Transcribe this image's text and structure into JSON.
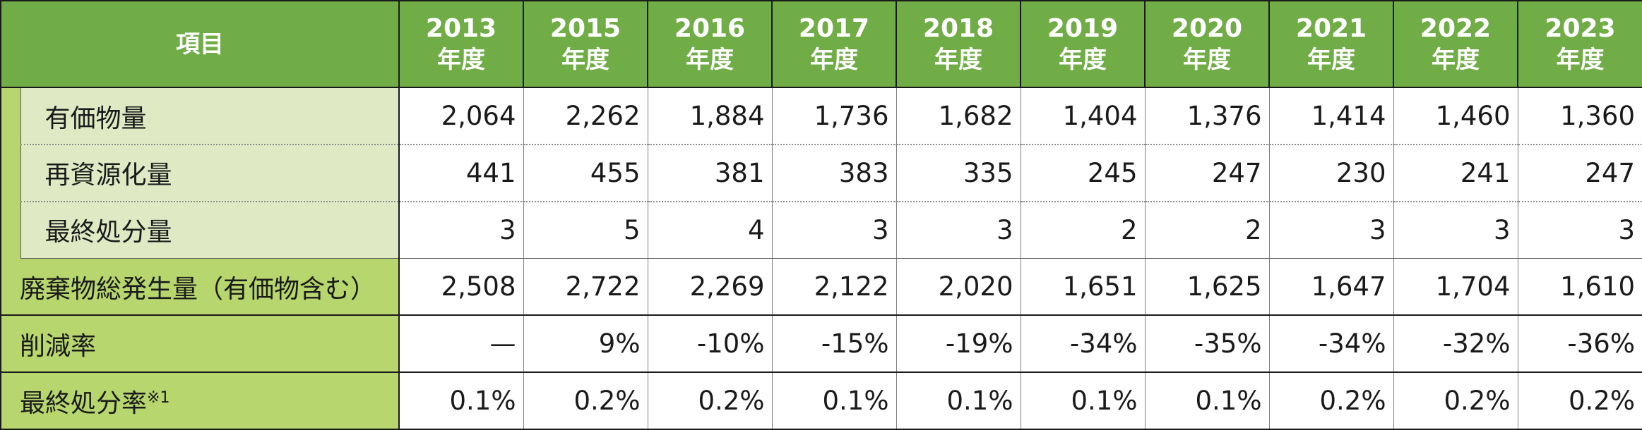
{
  "header": {
    "item_label": "項目",
    "unit": "年度",
    "years": [
      "2013",
      "2015",
      "2016",
      "2017",
      "2018",
      "2019",
      "2020",
      "2021",
      "2022",
      "2023"
    ]
  },
  "rows": [
    {
      "label": "有価物量",
      "values": [
        "2,064",
        "2,262",
        "1,884",
        "1,736",
        "1,682",
        "1,404",
        "1,376",
        "1,414",
        "1,460",
        "1,360"
      ]
    },
    {
      "label": "再資源化量",
      "values": [
        "441",
        "455",
        "381",
        "383",
        "335",
        "245",
        "247",
        "230",
        "241",
        "247"
      ]
    },
    {
      "label": "最終処分量",
      "values": [
        "3",
        "5",
        "4",
        "3",
        "3",
        "2",
        "2",
        "3",
        "3",
        "3"
      ]
    },
    {
      "label": "廃棄物総発生量（有価物含む）",
      "values": [
        "2,508",
        "2,722",
        "2,269",
        "2,122",
        "2,020",
        "1,651",
        "1,625",
        "1,647",
        "1,704",
        "1,610"
      ]
    },
    {
      "label": "削減率",
      "values": [
        "—",
        "9%",
        "-10%",
        "-15%",
        "-19%",
        "-34%",
        "-35%",
        "-34%",
        "-32%",
        "-36%"
      ]
    },
    {
      "label": "最終処分率",
      "note": "※1",
      "values": [
        "0.1%",
        "0.2%",
        "0.2%",
        "0.1%",
        "0.1%",
        "0.1%",
        "0.1%",
        "0.2%",
        "0.2%",
        "0.2%"
      ]
    }
  ],
  "colors": {
    "header_bg": "#70ad47",
    "header_text": "#ffffff",
    "label_green": "#b7d66e",
    "sub_label_bg": "#dfeac5",
    "border": "#1a1a1a"
  }
}
